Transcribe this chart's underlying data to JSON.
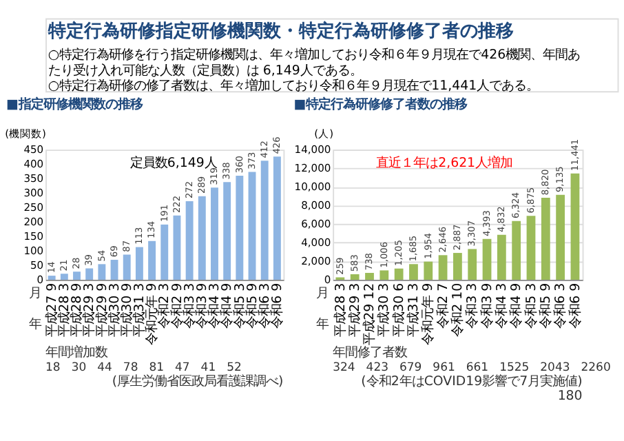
{
  "chart_data": [
    {
      "type": "other",
      "title": "特定行為研修指定研修機関数・特定行為研修修了者の推移",
      "annotations": [
        "○特定行為研修を行う指定研修機関は、年々増加しており令和６年９月現在で426機関、年間あたり受け入れ可能な人数（定員数）は 6,149人である。",
        "○特定行為研修の修了者数は、年々増加しており令和６年９月現在で11,441人である。"
      ]
    },
    {
      "type": "bar",
      "title": "■指定研修機関数の推移",
      "ylabel": "(機関数)",
      "categories": [
        "平成27 9",
        "平成28 3",
        "平成28 9",
        "平成29 3",
        "平成29 9",
        "平成30 3",
        "平成30 9",
        "平成31 3",
        "令和元年 9",
        "令和2 3",
        "令和2 9",
        "令和3 3",
        "令和3 9",
        "令和4 3",
        "令和4 9",
        "令和5 3",
        "令和5 9",
        "令和6 3",
        "令和6 9"
      ],
      "values": [
        14,
        21,
        28,
        39,
        54,
        69,
        87,
        113,
        134,
        191,
        222,
        272,
        289,
        319,
        338,
        360,
        373,
        412,
        426
      ],
      "color": "#8db4e2",
      "ylim": [
        0,
        450
      ],
      "yticks": [
        0,
        50,
        100,
        150,
        200,
        250,
        300,
        350,
        400,
        450
      ],
      "data_labels": true,
      "annotations": [
        "定員数6,149人",
        "年",
        "月",
        "年間増加数",
        "18　30　44　78　81　47　41　52",
        "(厚生労働省医政局看護課調べ)"
      ]
    },
    {
      "type": "bar",
      "title": "■特定行為研修修了者数の推移",
      "ylabel": "(人)",
      "categories": [
        "平成28 3",
        "平成29 3",
        "平成29 12",
        "平成30 3",
        "平成30 6",
        "平成31 3",
        "令和元年 9",
        "令和2 7",
        "令和2 10",
        "令和3 3",
        "令和3 9",
        "令和4 3",
        "令和4 9",
        "令和5 3",
        "令和5 9",
        "令和6 3",
        "令和6 9"
      ],
      "values": [
        259,
        583,
        738,
        1006,
        1205,
        1685,
        1954,
        2646,
        2887,
        3307,
        4393,
        4832,
        6324,
        6875,
        8820,
        9135,
        11441
      ],
      "value_labels": [
        "259",
        "583",
        "738",
        "1,006",
        "1,205",
        "1,685",
        "1,954",
        "2,646",
        "2,887",
        "3,307",
        "4,393",
        "4,832",
        "6,324",
        "6,875",
        "8,820",
        "9,135",
        "11,441"
      ],
      "color": "#9bbb59",
      "ylim": [
        0,
        14000
      ],
      "yticks": [
        0,
        {
          "value": 2000,
          "label": "2,000"
        },
        {
          "value": 4000,
          "label": "4,000"
        },
        {
          "value": 6000,
          "label": "6,000"
        },
        {
          "value": 8000,
          "label": "8,000"
        },
        {
          "value": 10000,
          "label": "10,000"
        },
        {
          "value": 12000,
          "label": "12,000"
        },
        {
          "value": 14000,
          "label": "14,000"
        }
      ],
      "grid": "y",
      "annotations": [
        "直近１年は2,621人増加",
        "年",
        "月",
        "年間修了者数",
        "324　423　679　961　661　1525　2043　2260",
        "(令和2年はCOVID19影響で7月実施値)",
        "180"
      ]
    }
  ]
}
